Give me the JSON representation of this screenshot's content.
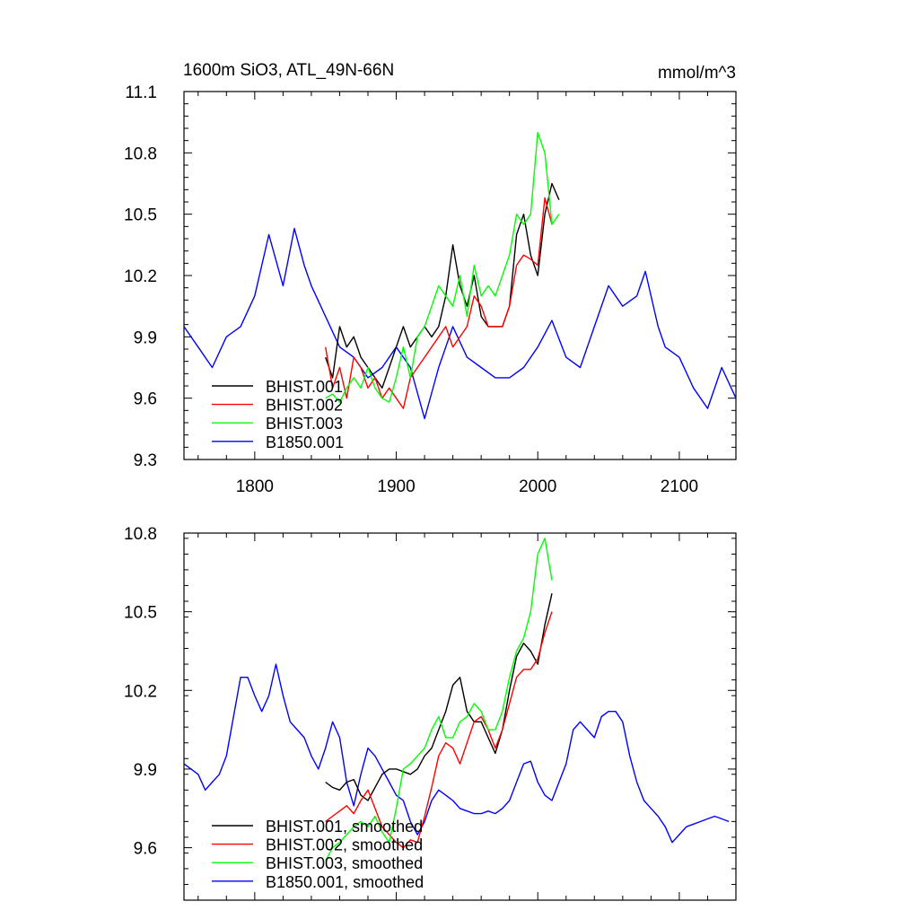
{
  "chart_data": [
    {
      "type": "line",
      "title": "1600m SiO3, ATL_49N-66N",
      "units": "mmol/m^3",
      "xlim": [
        1750,
        2140
      ],
      "ylim": [
        9.3,
        11.1
      ],
      "xticks": [
        1800,
        1900,
        2000,
        2100
      ],
      "xtick_labels": [
        "1800",
        "1900",
        "2000",
        "2100"
      ],
      "yticks": [
        9.3,
        9.6,
        9.9,
        10.2,
        10.5,
        10.8,
        11.1
      ],
      "ytick_labels": [
        "9.3",
        "9.6",
        "9.9",
        "10.2",
        "10.5",
        "10.8",
        "11.1"
      ],
      "legend_position": "bottom-left",
      "series": [
        {
          "name": "BHIST.001",
          "color": "#000000",
          "x": [
            1850,
            1855,
            1860,
            1865,
            1870,
            1875,
            1880,
            1885,
            1890,
            1895,
            1900,
            1905,
            1910,
            1915,
            1920,
            1925,
            1930,
            1935,
            1940,
            1945,
            1950,
            1955,
            1960,
            1965,
            1970,
            1975,
            1980,
            1985,
            1990,
            1995,
            2000,
            2005,
            2010,
            2015
          ],
          "y": [
            9.8,
            9.7,
            9.95,
            9.85,
            9.9,
            9.8,
            9.75,
            9.7,
            9.65,
            9.75,
            9.85,
            9.95,
            9.85,
            9.9,
            9.95,
            9.9,
            9.95,
            10.1,
            10.35,
            10.15,
            10.05,
            10.2,
            10.0,
            9.95,
            9.95,
            9.95,
            10.05,
            10.4,
            10.5,
            10.3,
            10.2,
            10.5,
            10.65,
            10.57
          ]
        },
        {
          "name": "BHIST.002",
          "color": "#ff0000",
          "x": [
            1850,
            1855,
            1860,
            1865,
            1870,
            1875,
            1880,
            1885,
            1890,
            1895,
            1900,
            1905,
            1910,
            1915,
            1920,
            1925,
            1930,
            1935,
            1940,
            1945,
            1950,
            1955,
            1960,
            1965,
            1970,
            1975,
            1980,
            1985,
            1990,
            1995,
            2000,
            2005,
            2010
          ],
          "y": [
            9.85,
            9.65,
            9.75,
            9.6,
            9.8,
            9.75,
            9.65,
            9.7,
            9.6,
            9.65,
            9.6,
            9.55,
            9.7,
            9.75,
            9.8,
            9.85,
            9.9,
            9.95,
            9.85,
            9.9,
            9.95,
            10.1,
            10.05,
            9.95,
            9.95,
            9.95,
            10.05,
            10.25,
            10.3,
            10.28,
            10.25,
            10.58,
            10.45
          ]
        },
        {
          "name": "BHIST.003",
          "color": "#00ff00",
          "x": [
            1850,
            1855,
            1860,
            1865,
            1870,
            1875,
            1880,
            1885,
            1890,
            1895,
            1900,
            1905,
            1910,
            1915,
            1920,
            1925,
            1930,
            1935,
            1940,
            1945,
            1950,
            1955,
            1960,
            1965,
            1970,
            1975,
            1980,
            1985,
            1990,
            1995,
            2000,
            2005,
            2010,
            2015
          ],
          "y": [
            9.6,
            9.62,
            9.58,
            9.65,
            9.7,
            9.65,
            9.75,
            9.65,
            9.6,
            9.58,
            9.7,
            9.85,
            9.7,
            9.9,
            9.95,
            10.05,
            10.15,
            10.1,
            10.05,
            10.2,
            10.0,
            10.25,
            10.1,
            10.15,
            10.1,
            10.2,
            10.3,
            10.5,
            10.45,
            10.5,
            10.9,
            10.8,
            10.45,
            10.5
          ]
        },
        {
          "name": "B1850.001",
          "color": "#0000ff",
          "x": [
            1750,
            1760,
            1770,
            1780,
            1790,
            1800,
            1810,
            1820,
            1828,
            1835,
            1840,
            1850,
            1860,
            1870,
            1880,
            1890,
            1900,
            1910,
            1920,
            1930,
            1940,
            1950,
            1960,
            1970,
            1980,
            1990,
            2000,
            2010,
            2020,
            2030,
            2040,
            2050,
            2060,
            2070,
            2076,
            2085,
            2090,
            2100,
            2110,
            2120,
            2130,
            2140
          ],
          "y": [
            9.95,
            9.85,
            9.75,
            9.9,
            9.95,
            10.1,
            10.4,
            10.15,
            10.43,
            10.25,
            10.15,
            10.0,
            9.85,
            9.8,
            9.7,
            9.75,
            9.85,
            9.75,
            9.5,
            9.75,
            9.95,
            9.8,
            9.75,
            9.7,
            9.7,
            9.75,
            9.85,
            9.98,
            9.8,
            9.75,
            9.95,
            10.15,
            10.05,
            10.1,
            10.22,
            9.95,
            9.85,
            9.8,
            9.65,
            9.55,
            9.75,
            9.6
          ]
        }
      ]
    },
    {
      "type": "line",
      "xlim": [
        1750,
        2140
      ],
      "ylim": [
        9.4,
        10.8
      ],
      "xticks": [
        1800,
        1900,
        2000,
        2100
      ],
      "yticks": [
        9.6,
        9.9,
        10.2,
        10.5,
        10.8
      ],
      "ytick_labels": [
        "9.6",
        "9.9",
        "10.2",
        "10.5",
        "10.8"
      ],
      "legend_position": "bottom-left",
      "series": [
        {
          "name": "BHIST.001, smoothed",
          "color": "#000000",
          "x": [
            1850,
            1855,
            1860,
            1865,
            1870,
            1875,
            1880,
            1885,
            1890,
            1895,
            1900,
            1905,
            1910,
            1915,
            1920,
            1925,
            1930,
            1935,
            1940,
            1945,
            1950,
            1955,
            1960,
            1965,
            1970,
            1975,
            1980,
            1985,
            1990,
            1995,
            2000,
            2005,
            2010
          ],
          "y": [
            9.85,
            9.83,
            9.82,
            9.85,
            9.86,
            9.8,
            9.78,
            9.83,
            9.88,
            9.9,
            9.9,
            9.89,
            9.88,
            9.9,
            9.95,
            9.98,
            10.05,
            10.12,
            10.22,
            10.25,
            10.12,
            10.08,
            10.08,
            10.02,
            9.96,
            10.05,
            10.2,
            10.33,
            10.38,
            10.35,
            10.3,
            10.45,
            10.57
          ]
        },
        {
          "name": "BHIST.002, smoothed",
          "color": "#ff0000",
          "x": [
            1850,
            1855,
            1860,
            1865,
            1870,
            1875,
            1880,
            1885,
            1890,
            1895,
            1900,
            1905,
            1910,
            1915,
            1920,
            1925,
            1930,
            1935,
            1940,
            1945,
            1950,
            1955,
            1960,
            1965,
            1970,
            1975,
            1980,
            1985,
            1990,
            1995,
            2000,
            2005,
            2010
          ],
          "y": [
            9.7,
            9.72,
            9.74,
            9.76,
            9.73,
            9.78,
            9.82,
            9.75,
            9.68,
            9.65,
            9.62,
            9.6,
            9.63,
            9.62,
            9.72,
            9.83,
            9.95,
            10.0,
            9.98,
            9.92,
            10.0,
            10.08,
            10.1,
            10.05,
            9.98,
            10.05,
            10.15,
            10.25,
            10.28,
            10.28,
            10.32,
            10.42,
            10.5
          ]
        },
        {
          "name": "BHIST.003, smoothed",
          "color": "#00ff00",
          "x": [
            1850,
            1855,
            1860,
            1865,
            1870,
            1875,
            1880,
            1885,
            1890,
            1895,
            1900,
            1905,
            1910,
            1915,
            1920,
            1925,
            1930,
            1935,
            1940,
            1945,
            1950,
            1955,
            1960,
            1965,
            1970,
            1975,
            1980,
            1985,
            1990,
            1995,
            2000,
            2005,
            2010
          ],
          "y": [
            9.55,
            9.6,
            9.62,
            9.65,
            9.68,
            9.7,
            9.68,
            9.72,
            9.66,
            9.62,
            9.75,
            9.9,
            9.92,
            9.95,
            9.98,
            10.05,
            10.1,
            10.02,
            10.02,
            10.08,
            10.1,
            10.15,
            10.12,
            10.05,
            10.05,
            10.12,
            10.25,
            10.35,
            10.4,
            10.5,
            10.72,
            10.78,
            10.62
          ]
        },
        {
          "name": "B1850.001, smoothed",
          "color": "#0000ff",
          "x": [
            1750,
            1755,
            1760,
            1765,
            1770,
            1775,
            1780,
            1785,
            1790,
            1795,
            1800,
            1805,
            1810,
            1815,
            1820,
            1825,
            1830,
            1835,
            1840,
            1845,
            1850,
            1855,
            1860,
            1865,
            1870,
            1875,
            1880,
            1885,
            1890,
            1895,
            1900,
            1905,
            1910,
            1915,
            1920,
            1925,
            1930,
            1935,
            1940,
            1945,
            1950,
            1955,
            1960,
            1965,
            1970,
            1975,
            1980,
            1985,
            1990,
            1995,
            2000,
            2005,
            2010,
            2015,
            2020,
            2025,
            2030,
            2035,
            2040,
            2045,
            2050,
            2055,
            2060,
            2065,
            2070,
            2075,
            2080,
            2085,
            2090,
            2095,
            2100,
            2105,
            2110,
            2115,
            2120,
            2125,
            2130,
            2135
          ],
          "y": [
            9.92,
            9.9,
            9.88,
            9.82,
            9.85,
            9.88,
            9.95,
            10.1,
            10.25,
            10.25,
            10.18,
            10.12,
            10.18,
            10.3,
            10.18,
            10.08,
            10.05,
            10.02,
            9.95,
            9.9,
            9.98,
            10.08,
            10.02,
            9.85,
            9.76,
            9.88,
            9.98,
            9.95,
            9.9,
            9.85,
            9.8,
            9.78,
            9.7,
            9.65,
            9.7,
            9.78,
            9.82,
            9.8,
            9.78,
            9.75,
            9.74,
            9.73,
            9.73,
            9.74,
            9.73,
            9.75,
            9.78,
            9.85,
            9.92,
            9.93,
            9.85,
            9.8,
            9.78,
            9.85,
            9.92,
            10.05,
            10.08,
            10.05,
            10.02,
            10.1,
            10.12,
            10.12,
            10.08,
            9.95,
            9.85,
            9.78,
            9.75,
            9.72,
            9.68,
            9.62,
            9.65,
            9.68,
            9.69,
            9.7,
            9.71,
            9.72,
            9.71,
            9.7
          ]
        }
      ]
    }
  ]
}
